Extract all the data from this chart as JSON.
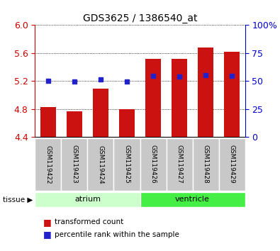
{
  "title": "GDS3625 / 1386540_at",
  "samples": [
    "GSM119422",
    "GSM119423",
    "GSM119424",
    "GSM119425",
    "GSM119426",
    "GSM119427",
    "GSM119428",
    "GSM119429"
  ],
  "red_bar_top": [
    4.83,
    4.77,
    5.09,
    4.8,
    5.52,
    5.52,
    5.68,
    5.62
  ],
  "red_bar_bottom": 4.4,
  "blue_dot_y": [
    5.2,
    5.195,
    5.22,
    5.195,
    5.27,
    5.265,
    5.285,
    5.275
  ],
  "ylim": [
    4.4,
    6.0
  ],
  "yticks_left": [
    4.4,
    4.8,
    5.2,
    5.6,
    6.0
  ],
  "yticks_right_vals": [
    0,
    25,
    50,
    75,
    100
  ],
  "yticks_right_labels": [
    "0",
    "25",
    "50",
    "75",
    "100%"
  ],
  "groups": [
    {
      "label": "atrium",
      "start": 0,
      "end": 3,
      "color": "#ccffcc"
    },
    {
      "label": "ventricle",
      "start": 4,
      "end": 7,
      "color": "#44ee44"
    }
  ],
  "red_color": "#cc1111",
  "blue_color": "#2222cc",
  "bar_width": 0.6,
  "tick_color_left": "#cc0000",
  "tick_color_right": "#0000cc",
  "label_box_color": "#c8c8c8",
  "tissue_label_color": "black"
}
